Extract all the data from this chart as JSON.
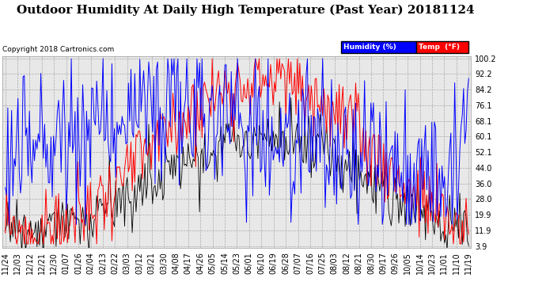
{
  "title": "Outdoor Humidity At Daily High Temperature (Past Year) 20181124",
  "copyright": "Copyright 2018 Cartronics.com",
  "yticks": [
    3.9,
    11.9,
    19.9,
    28.0,
    36.0,
    44.0,
    52.1,
    60.1,
    68.1,
    76.1,
    84.2,
    92.2,
    100.2
  ],
  "ymin": 3.9,
  "ymax": 100.2,
  "legend_humidity_label": "Humidity (%)",
  "legend_temp_label": "Temp  (°F)",
  "humidity_color": "#0000ff",
  "temp_color": "#ff0000",
  "dewpoint_color": "#000000",
  "bg_color": "#ffffff",
  "plot_bg_color": "#e8e8e8",
  "grid_color": "#aaaaaa",
  "xtick_labels": [
    "11/24",
    "12/03",
    "12/12",
    "12/21",
    "12/30",
    "01/07",
    "01/26",
    "02/04",
    "02/13",
    "02/22",
    "03/03",
    "03/12",
    "03/21",
    "03/30",
    "04/08",
    "04/17",
    "04/26",
    "05/05",
    "05/14",
    "05/23",
    "06/01",
    "06/10",
    "06/19",
    "06/28",
    "07/07",
    "07/16",
    "07/25",
    "08/03",
    "08/12",
    "08/21",
    "08/30",
    "09/17",
    "09/26",
    "10/05",
    "10/14",
    "10/23",
    "11/01",
    "11/10",
    "11/19"
  ],
  "n_points": 366,
  "title_fontsize": 11,
  "copyright_fontsize": 6.5,
  "tick_fontsize": 7
}
